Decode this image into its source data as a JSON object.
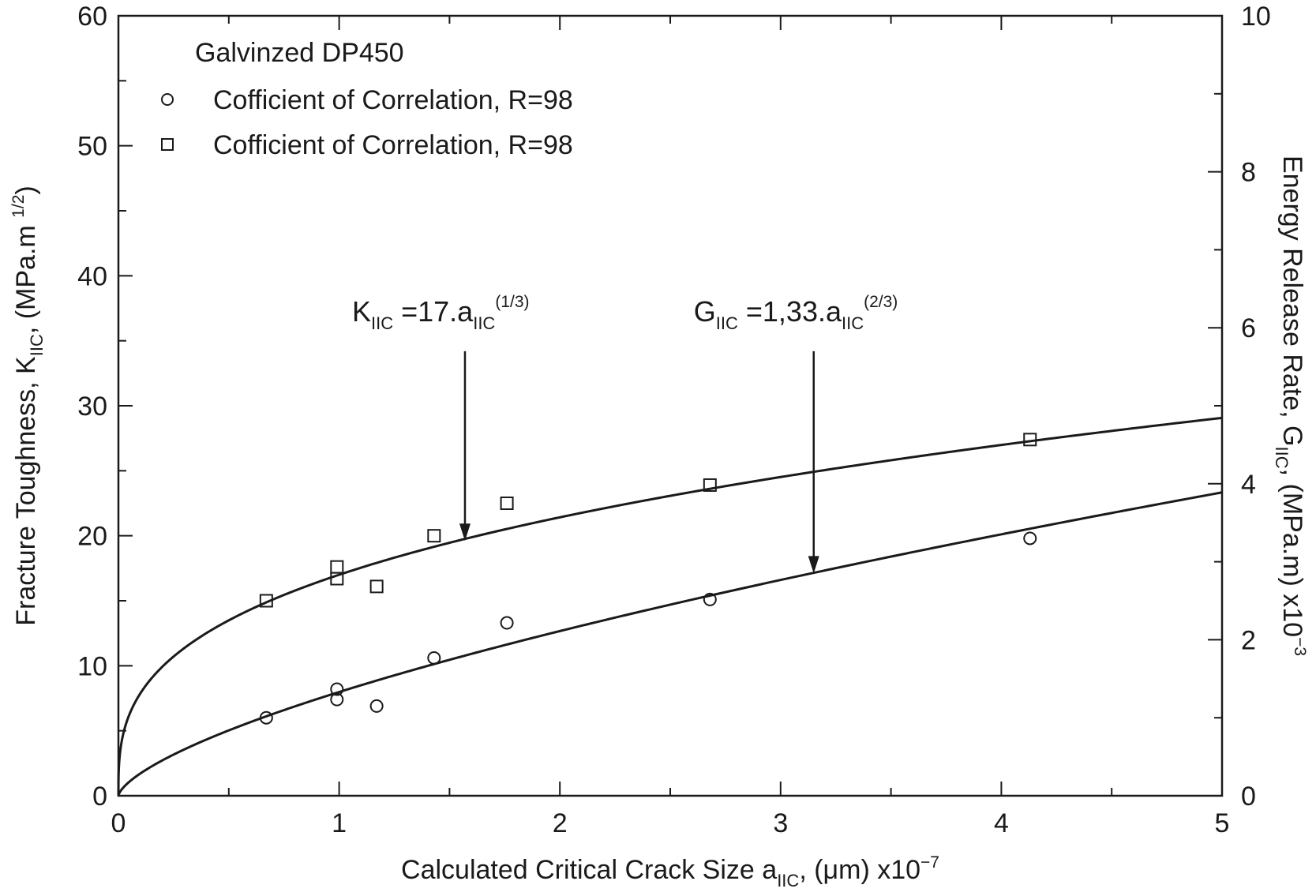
{
  "chart_data": {
    "type": "scatter",
    "legend_title": "Galvinzed DP450",
    "legend_placement": "top-left",
    "grid": false,
    "x_axis": {
      "label_main": "Calculated Critical Crack Size a",
      "label_sub": "IIC",
      "label_suffix": ", (μm) x10",
      "label_sup": "−7",
      "range": [
        0,
        5
      ],
      "ticks": [
        0,
        1,
        2,
        3,
        4,
        5
      ],
      "tick_labels": [
        "0",
        "1",
        "2",
        "3",
        "4",
        "5"
      ]
    },
    "y_left": {
      "label_main": "Fracture Toughness, K",
      "label_sub": "IIC",
      "label_suffix": ", (MPa.m ",
      "label_sup": "1/2",
      "label_end": ")",
      "range": [
        0,
        60
      ],
      "ticks": [
        0,
        10,
        20,
        30,
        40,
        50,
        60
      ],
      "tick_labels": [
        "0",
        "10",
        "20",
        "30",
        "40",
        "50",
        "60"
      ]
    },
    "y_right": {
      "label_main": "Energy Release Rate, G",
      "label_sub": "IIC",
      "label_suffix": ", (MPa.m) x10",
      "label_sup": "−3",
      "range": [
        0,
        10
      ],
      "ticks": [
        0,
        2,
        4,
        6,
        8,
        10
      ],
      "tick_labels": [
        "0",
        "2",
        "4",
        "6",
        "8",
        "10"
      ]
    },
    "series": [
      {
        "name": "Cofficient of Correlation, R=98",
        "marker": "circle",
        "axis": "left",
        "x": [
          0.67,
          0.99,
          0.99,
          1.17,
          1.43,
          1.76,
          2.68,
          4.13
        ],
        "y": [
          6.0,
          8.2,
          7.4,
          6.9,
          10.6,
          13.3,
          15.1,
          19.8
        ]
      },
      {
        "name": "Cofficient of Correlation, R=98",
        "marker": "square",
        "axis": "left",
        "x": [
          0.67,
          0.99,
          0.99,
          1.17,
          1.43,
          1.76,
          2.68,
          4.13
        ],
        "y": [
          15.0,
          17.6,
          16.7,
          16.1,
          20.0,
          22.5,
          23.9,
          27.4
        ]
      }
    ],
    "fit_curves": [
      {
        "equation": "K = 17·a^(1/3)",
        "axis": "left",
        "coef": 17,
        "exponent": 0.3333
      },
      {
        "equation": "G = 1.33·a^(2/3)",
        "axis": "right",
        "coef": 1.33,
        "exponent": 0.6667
      }
    ],
    "annotations": [
      {
        "sym": "K",
        "sub": "IIC",
        "mid": " =17.a",
        "sub2": "IIC",
        "sup": "(1/3)",
        "arrow_x": 1.57,
        "arrow_y_top": 34.2,
        "arrow_y_tip": 19.6
      },
      {
        "sym": "G",
        "sub": "IIC",
        "mid": " =1,33.a",
        "sub2": "IIC",
        "sup": "(2/3)",
        "arrow_x": 3.15,
        "arrow_y_top": 34.2,
        "arrow_y_tip": 17.1
      }
    ]
  }
}
